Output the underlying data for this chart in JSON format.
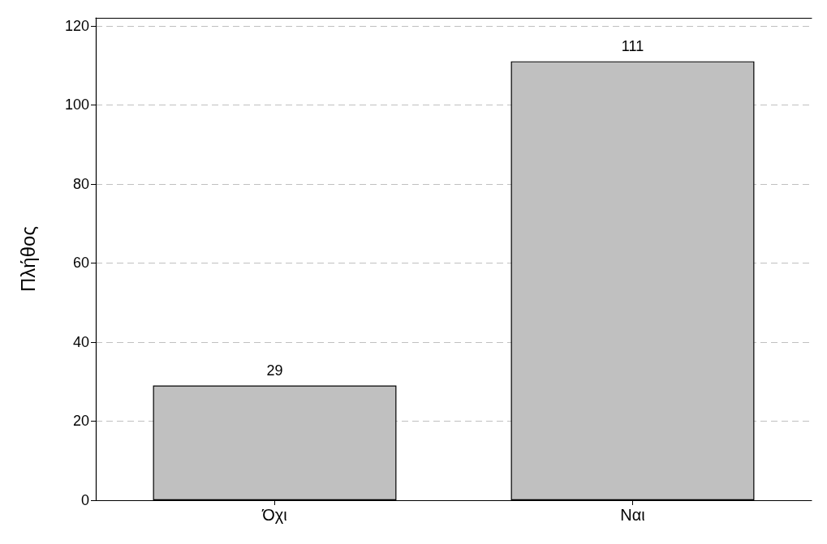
{
  "chart_data": {
    "type": "bar",
    "ylabel": "Πλήθος",
    "categories": [
      "Όχι",
      "Ναι"
    ],
    "values": [
      29,
      111
    ],
    "color": "#c0c0c0",
    "ylim": [
      0,
      122
    ],
    "yticks": [
      0,
      20,
      40,
      60,
      80,
      100,
      120
    ],
    "grid": "y",
    "data_labels": true
  }
}
